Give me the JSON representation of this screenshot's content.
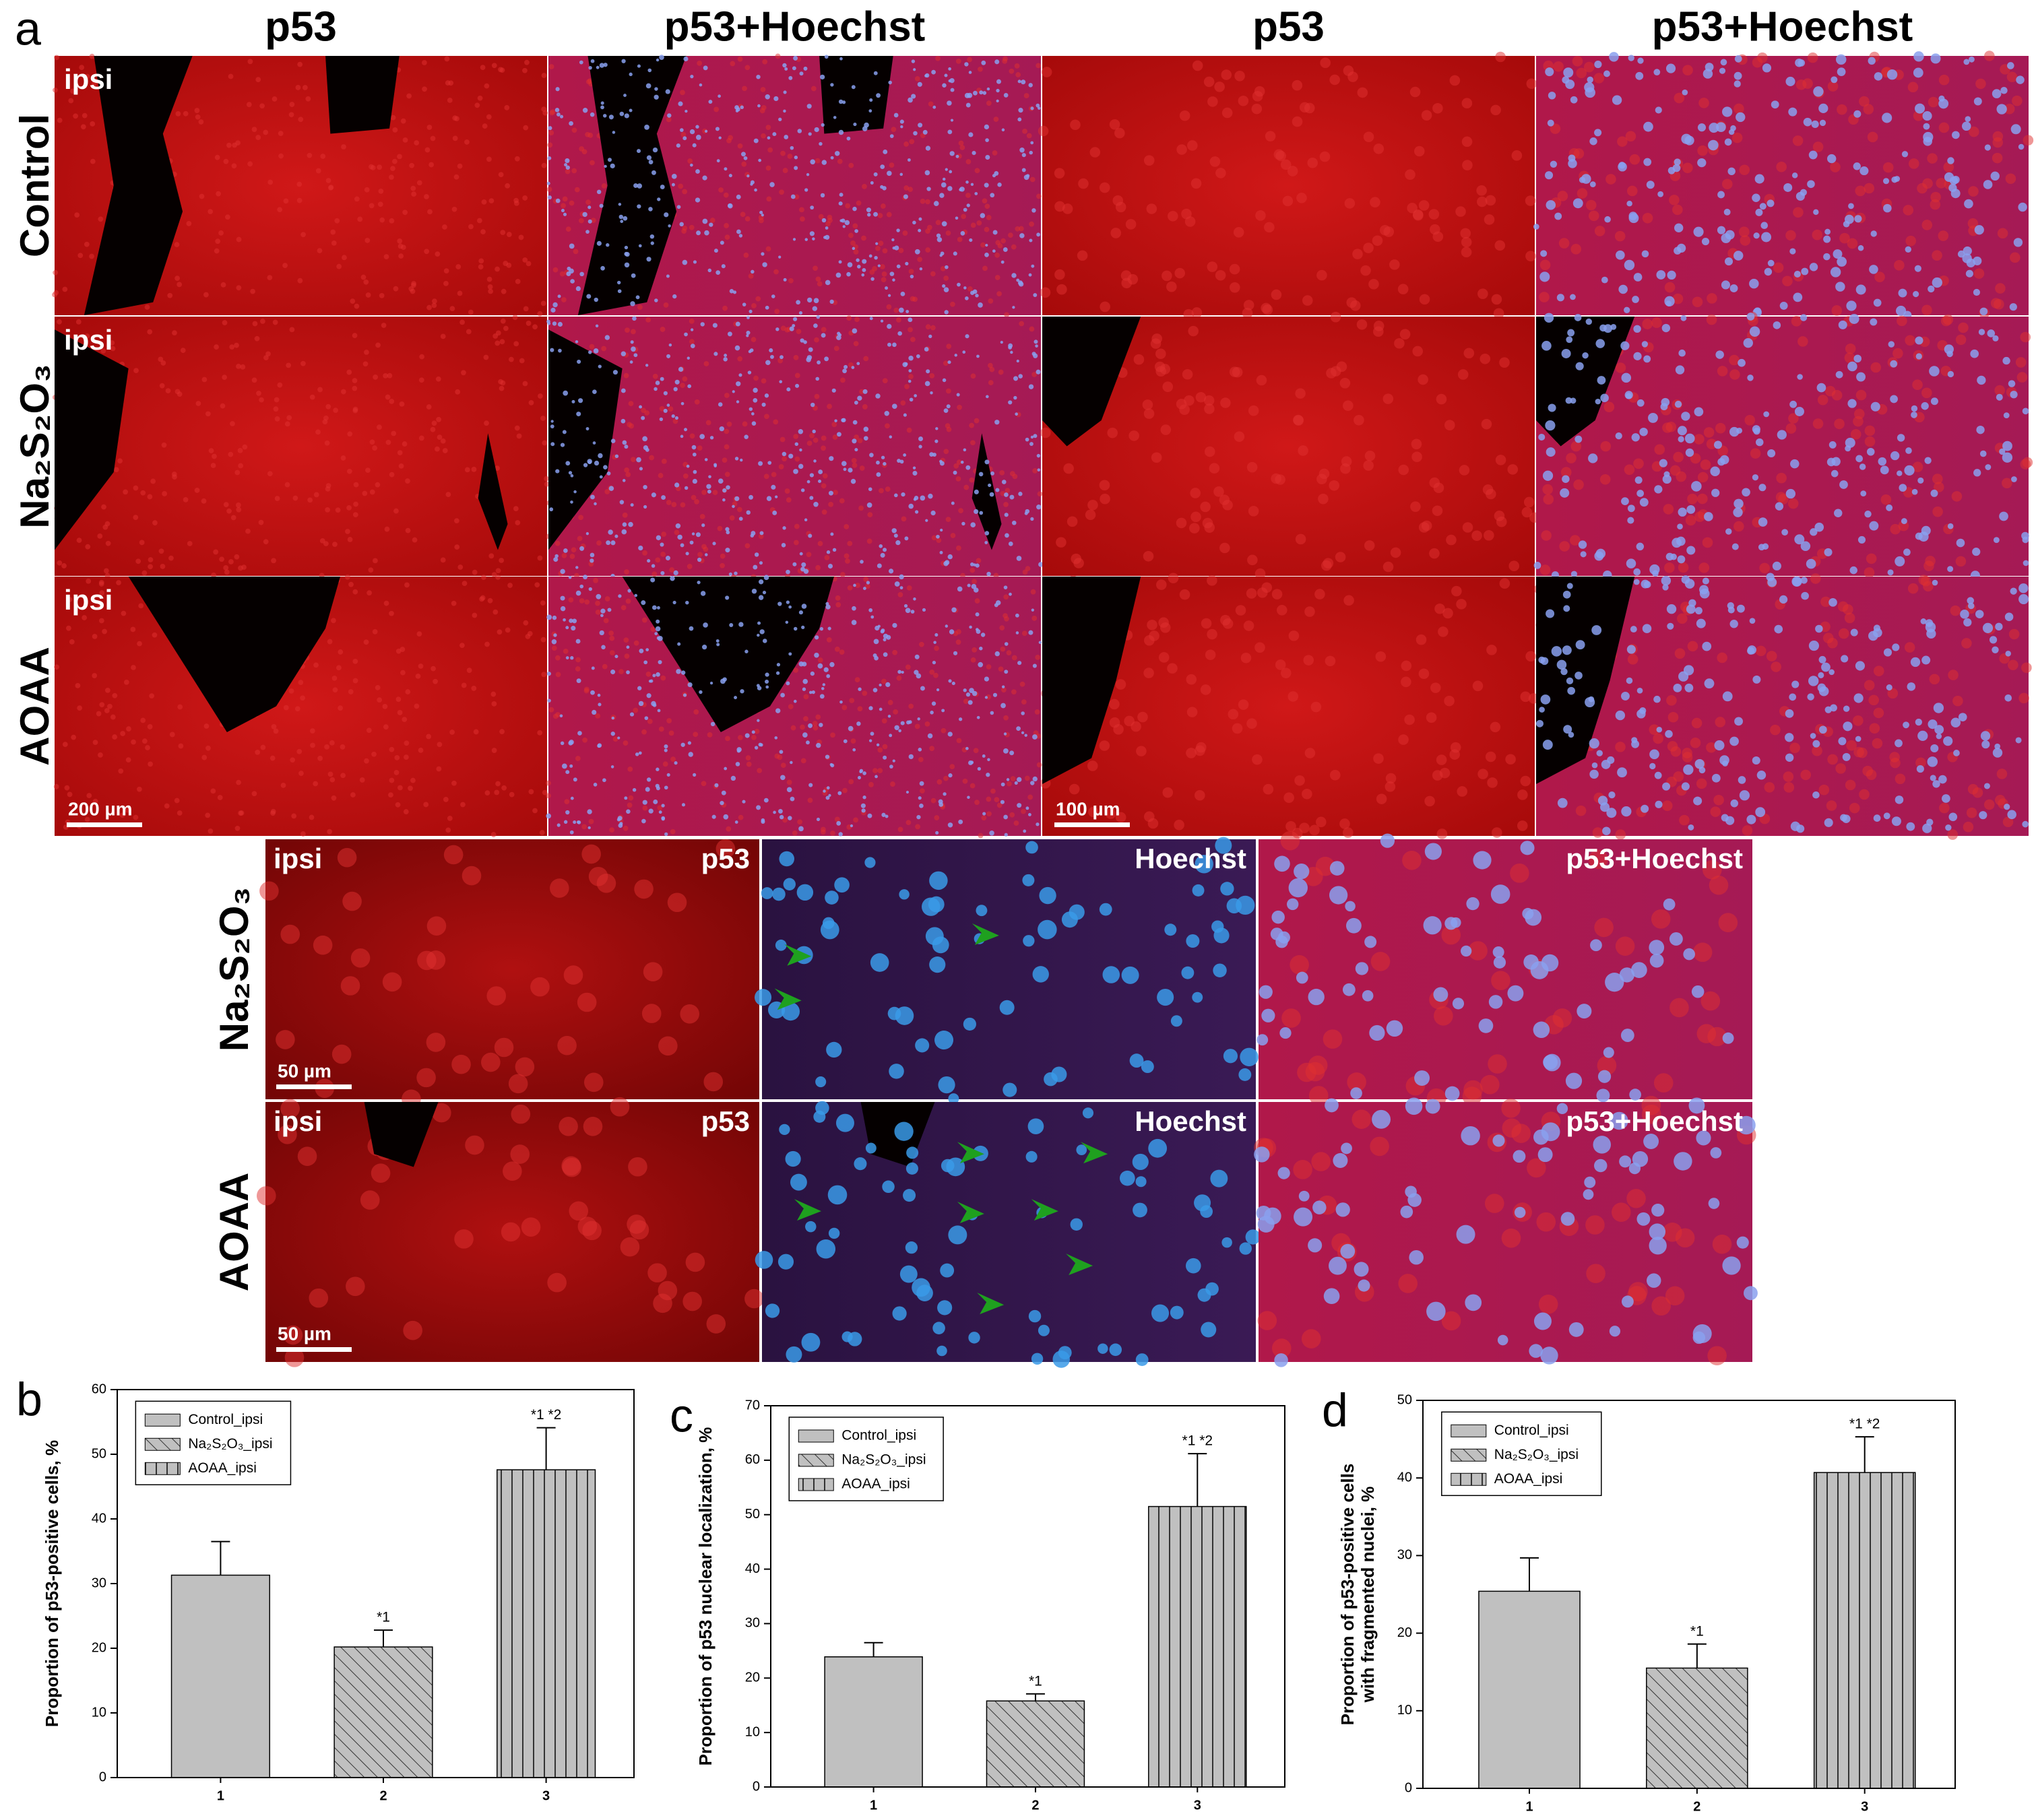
{
  "figure_label": "a",
  "top": {
    "column_headers": [
      "p53",
      "p53+Hoechst",
      "p53",
      "p53+Hoechst"
    ],
    "rows": [
      {
        "label": "Control",
        "tag": "ipsi"
      },
      {
        "label": "Na₂S₂O₃",
        "tag": "ipsi"
      },
      {
        "label": "AOAA",
        "tag": "ipsi"
      }
    ],
    "scale_bars": [
      "200 µm",
      "100 µm"
    ]
  },
  "bottom": {
    "column_labels": [
      "p53",
      "Hoechst",
      "p53+Hoechst"
    ],
    "rows": [
      {
        "label": "Na₂S₂O₃",
        "tag": "ipsi",
        "scale_bar": "50 µm"
      },
      {
        "label": "AOAA",
        "tag": "ipsi",
        "scale_bar": "50 µm"
      }
    ]
  },
  "chart_data": [
    {
      "type": "bar",
      "panel": "b",
      "ylabel": [
        "Proportion of p53-positive cells, %"
      ],
      "categories": [
        "1",
        "2",
        "3"
      ],
      "values": [
        31.3,
        20.2,
        47.6
      ],
      "errors": [
        5.2,
        2.6,
        6.5
      ],
      "annotations": [
        null,
        "*1",
        "*1 *2"
      ],
      "legend": [
        "Control_ipsi",
        "Na₂S₂O₃_ipsi",
        "AOAA_ipsi"
      ],
      "patterns": [
        "solid",
        "diagonal",
        "vertical"
      ],
      "color": "#c0c0c0",
      "ylim": [
        0,
        60
      ],
      "yticks": [
        0,
        10,
        20,
        30,
        40,
        50,
        60
      ]
    },
    {
      "type": "bar",
      "panel": "c",
      "ylabel": [
        "Proportion of p53 nuclear localization, %"
      ],
      "categories": [
        "1",
        "2",
        "3"
      ],
      "values": [
        23.9,
        15.8,
        51.5
      ],
      "errors": [
        2.6,
        1.3,
        9.7
      ],
      "annotations": [
        null,
        "*1",
        "*1 *2"
      ],
      "legend": [
        "Control_ipsi",
        "Na₂S₂O₃_ipsi",
        "AOAA_ipsi"
      ],
      "patterns": [
        "solid",
        "diagonal",
        "vertical"
      ],
      "color": "#c0c0c0",
      "ylim": [
        0,
        70
      ],
      "yticks": [
        0,
        10,
        20,
        30,
        40,
        50,
        60,
        70
      ]
    },
    {
      "type": "bar",
      "panel": "d",
      "ylabel": [
        "Proportion of p53-positive cells",
        "with fragmented nuclei, %"
      ],
      "categories": [
        "1",
        "2",
        "3"
      ],
      "values": [
        25.4,
        15.5,
        40.7
      ],
      "errors": [
        4.3,
        3.1,
        4.6
      ],
      "annotations": [
        null,
        "*1",
        "*1 *2"
      ],
      "legend": [
        "Control_ipsi",
        "Na₂S₂O₃_ipsi",
        "AOAA_ipsi"
      ],
      "patterns": [
        "solid",
        "diagonal",
        "vertical"
      ],
      "color": "#c0c0c0",
      "ylim": [
        0,
        50
      ],
      "yticks": [
        0,
        10,
        20,
        30,
        40,
        50
      ]
    }
  ]
}
